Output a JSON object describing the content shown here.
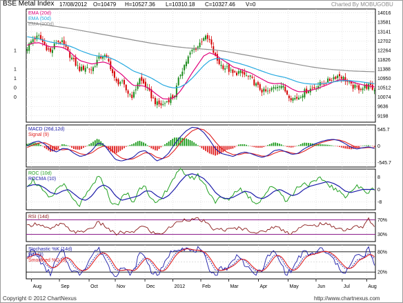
{
  "header": {
    "title": "BSE Metal Index",
    "date": "17/08/2012",
    "open": "O=10479",
    "high": "H=10527.36",
    "low": "L=10310.18",
    "close": "C=10327.46",
    "volume": "V=0",
    "credit": "Charted By MOBUGOBU"
  },
  "footer": {
    "copyright": "Copyright © 2012 ChartNexus",
    "url": "http://www.chartnexus.com"
  },
  "chart_data": [
    {
      "type": "candlestick",
      "panel": "price",
      "title": "BSE Metal Index",
      "yticks": [
        14016,
        13581,
        13141,
        12702,
        12264,
        11826,
        11388,
        10950,
        10512,
        10074,
        9636,
        9198
      ],
      "left_tick_labels": [
        "1",
        "1",
        "1",
        "0",
        "0"
      ],
      "ylim": [
        8900,
        14200
      ],
      "xticks": [
        "Aug",
        "Sep",
        "Oct",
        "Nov",
        "Dec",
        "2012",
        "Feb",
        "Mar",
        "Apr",
        "May",
        "Jun",
        "Jul",
        "Aug"
      ],
      "close_anchors": [
        12400,
        12800,
        12900,
        12500,
        12150,
        12700,
        12600,
        12150,
        11700,
        11350,
        11500,
        11350,
        11850,
        12050,
        11650,
        10750,
        10800,
        10300,
        10100,
        10950,
        10650,
        10150,
        9750,
        9700,
        9950,
        10150,
        11150,
        11750,
        12250,
        12450,
        12900,
        12700,
        11900,
        11550,
        11400,
        11150,
        11250,
        11100,
        10950,
        10600,
        10350,
        10300,
        10550,
        10700,
        10300,
        10000,
        10050,
        10300,
        10450,
        10550,
        10700,
        10800,
        11000,
        11100,
        10900,
        10600,
        10500,
        10500,
        10600,
        10400
      ],
      "ema20_anchors": [
        12500,
        12600,
        12620,
        12520,
        12420,
        12440,
        12400,
        12250,
        12000,
        11780,
        11700,
        11620,
        11680,
        11720,
        11620,
        11350,
        11150,
        10880,
        10620,
        10620,
        10580,
        10420,
        10200,
        10000,
        9980,
        10050,
        10350,
        10750,
        11200,
        11600,
        12000,
        12150,
        12050,
        11850,
        11680,
        11480,
        11400,
        11300,
        11200,
        11050,
        10900,
        10750,
        10700,
        10720,
        10620,
        10450,
        10330,
        10330,
        10380,
        10450,
        10550,
        10650,
        10780,
        10880,
        10880,
        10800,
        10720,
        10650,
        10600,
        10550
      ],
      "ema50_anchors": [
        12900,
        12850,
        12800,
        12720,
        12650,
        12600,
        12550,
        12480,
        12380,
        12250,
        12150,
        12050,
        12000,
        11980,
        11920,
        11800,
        11650,
        11480,
        11300,
        11200,
        11100,
        10980,
        10820,
        10650,
        10550,
        10500,
        10550,
        10700,
        10950,
        11250,
        11550,
        11780,
        11880,
        11880,
        11820,
        11720,
        11650,
        11570,
        11480,
        11380,
        11280,
        11180,
        11100,
        11040,
        10980,
        10880,
        10780,
        10720,
        10690,
        10680,
        10700,
        10730,
        10780,
        10830,
        10850,
        10840,
        10810,
        10780,
        10740,
        10700
      ],
      "ema200_anchors": [
        13580,
        13540,
        13500,
        13460,
        13420,
        13380,
        13340,
        13300,
        13250,
        13200,
        13150,
        13100,
        13050,
        13000,
        12950,
        12900,
        12850,
        12800,
        12750,
        12700,
        12650,
        12600,
        12560,
        12520,
        12480,
        12440,
        12410,
        12380,
        12360,
        12340,
        12320,
        12300,
        12280,
        12240,
        12200,
        12150,
        12100,
        12050,
        12000,
        11950,
        11900,
        11850,
        11800,
        11750,
        11700,
        11650,
        11600,
        11550,
        11500,
        11460,
        11420,
        11390,
        11360,
        11340,
        11320,
        11300,
        11290,
        11280,
        11270,
        11260
      ],
      "series": [
        {
          "name": "EMA (20d)",
          "color": "#e0007a"
        },
        {
          "name": "EMA (50d)",
          "color": "#25a9e0"
        },
        {
          "name": "EMA (200d)",
          "color": "#8e8e8e"
        }
      ],
      "bull_color": "#1a8a1a",
      "bear_color": "#d40000"
    },
    {
      "type": "line",
      "panel": "macd",
      "title": "MACD (26d,12d)",
      "yticks": [
        545.7,
        0,
        -545.7
      ],
      "ytick_labels": [
        "545.7",
        "0",
        "-545.7"
      ],
      "ylim": [
        -700,
        700
      ],
      "macd_anchors": [
        0,
        120,
        160,
        60,
        -120,
        -200,
        -80,
        -100,
        -250,
        -350,
        -300,
        -150,
        100,
        50,
        -200,
        -450,
        -500,
        -450,
        -380,
        -200,
        -150,
        -300,
        -500,
        -420,
        -250,
        50,
        300,
        500,
        620,
        600,
        450,
        200,
        -100,
        -250,
        -300,
        -350,
        -250,
        -200,
        -250,
        -330,
        -380,
        -300,
        -150,
        -120,
        -200,
        -280,
        -250,
        -100,
        0,
        80,
        150,
        200,
        220,
        180,
        80,
        -40,
        -100,
        -60,
        -30,
        -80
      ],
      "signal_anchors": [
        -50,
        30,
        100,
        110,
        20,
        -100,
        -130,
        -110,
        -170,
        -260,
        -290,
        -230,
        -80,
        0,
        -80,
        -260,
        -400,
        -450,
        -430,
        -330,
        -220,
        -250,
        -380,
        -420,
        -350,
        -150,
        100,
        320,
        500,
        580,
        540,
        380,
        130,
        -80,
        -210,
        -290,
        -290,
        -240,
        -240,
        -290,
        -340,
        -330,
        -240,
        -170,
        -180,
        -240,
        -260,
        -180,
        -70,
        30,
        110,
        170,
        210,
        200,
        140,
        40,
        -50,
        -70,
        -50,
        -60
      ],
      "series": [
        {
          "name": "MACD (26d,12d)",
          "color": "#1a1aa8"
        },
        {
          "name": "Signal (9)",
          "color": "#e02020"
        }
      ],
      "hist_pos_color": "#1a9a1a",
      "hist_neg_color": "#e02020"
    },
    {
      "type": "line",
      "panel": "roc",
      "title": "ROC (10d)",
      "yticks": [
        8,
        0,
        -8
      ],
      "ytick_labels": [
        "8",
        "0",
        "-8"
      ],
      "ylim": [
        -13,
        13
      ],
      "roc_anchors": [
        3,
        6,
        2,
        -3,
        -6,
        0,
        4,
        -2,
        -8,
        -10,
        -4,
        2,
        8,
        4,
        -6,
        -11,
        -6,
        -2,
        -9,
        0,
        4,
        -6,
        -10,
        -5,
        2,
        8,
        12,
        10,
        7,
        9,
        4,
        -2,
        -8,
        -5,
        -7,
        -3,
        1,
        -2,
        -6,
        -9,
        -5,
        0,
        2,
        -2,
        -7,
        -4,
        2,
        4,
        3,
        5,
        7,
        4,
        1,
        -2,
        -4,
        -1,
        2,
        0,
        -2,
        1
      ],
      "rocma_anchors": [
        2,
        3,
        3,
        1,
        -2,
        -3,
        -1,
        0,
        -3,
        -6,
        -7,
        -4,
        1,
        3,
        1,
        -4,
        -7,
        -6,
        -5,
        -4,
        -1,
        -1,
        -4,
        -6,
        -4,
        0,
        5,
        9,
        10,
        9,
        7,
        3,
        -2,
        -5,
        -6,
        -5,
        -3,
        -1,
        -2,
        -5,
        -6,
        -4,
        -1,
        0,
        -2,
        -4,
        -3,
        0,
        2,
        3,
        4,
        5,
        4,
        2,
        -1,
        -2,
        -1,
        0,
        0,
        0
      ],
      "series": [
        {
          "name": "ROC (10d)",
          "color": "#20a020"
        },
        {
          "name": "ROCMA (10)",
          "color": "#1a1aa8"
        }
      ]
    },
    {
      "type": "line",
      "panel": "rsi",
      "title": "RSI (14d)",
      "yticks": [
        70,
        30
      ],
      "ytick_labels": [
        "70%",
        "30%"
      ],
      "ylim": [
        10,
        90
      ],
      "rsi_anchors": [
        52,
        58,
        60,
        50,
        42,
        55,
        58,
        45,
        38,
        34,
        42,
        48,
        62,
        56,
        42,
        30,
        36,
        35,
        33,
        52,
        50,
        38,
        30,
        34,
        46,
        58,
        68,
        72,
        70,
        72,
        66,
        52,
        42,
        44,
        42,
        45,
        48,
        44,
        40,
        34,
        36,
        44,
        52,
        46,
        36,
        34,
        46,
        54,
        52,
        55,
        60,
        56,
        52,
        46,
        42,
        46,
        52,
        50,
        72,
        48
      ],
      "series": [
        {
          "name": "RSI (14d)",
          "color": "#8a1a1a"
        }
      ],
      "band_color": "#8a1a8a"
    },
    {
      "type": "line",
      "panel": "stochastic",
      "title": "Stochastic %K (14d)",
      "yticks": [
        80,
        20
      ],
      "ytick_labels": [
        "80%",
        "20%"
      ],
      "ylim": [
        0,
        100
      ],
      "k_anchors": [
        70,
        85,
        60,
        30,
        15,
        60,
        85,
        40,
        20,
        15,
        40,
        70,
        90,
        70,
        30,
        10,
        35,
        20,
        15,
        75,
        70,
        25,
        10,
        30,
        70,
        88,
        92,
        90,
        80,
        88,
        70,
        30,
        10,
        35,
        30,
        55,
        75,
        40,
        20,
        15,
        30,
        70,
        80,
        50,
        15,
        25,
        60,
        80,
        70,
        78,
        90,
        72,
        60,
        30,
        20,
        40,
        75,
        60,
        90,
        40
      ],
      "d_anchors": [
        60,
        75,
        70,
        45,
        30,
        40,
        65,
        60,
        35,
        22,
        28,
        52,
        75,
        78,
        55,
        25,
        25,
        28,
        22,
        45,
        65,
        50,
        25,
        22,
        45,
        72,
        85,
        90,
        85,
        85,
        78,
        55,
        25,
        25,
        32,
        42,
        60,
        55,
        35,
        22,
        25,
        48,
        72,
        65,
        35,
        22,
        38,
        65,
        72,
        75,
        82,
        80,
        68,
        48,
        30,
        32,
        55,
        62,
        75,
        60
      ],
      "series": [
        {
          "name": "Stochastic %K (14d)",
          "color": "#1a1aa8"
        },
        {
          "name": "%D (3)",
          "color": "#1a1aa8"
        },
        {
          "name": "Smoothed %D (3)",
          "color": "#e02020"
        }
      ]
    }
  ]
}
